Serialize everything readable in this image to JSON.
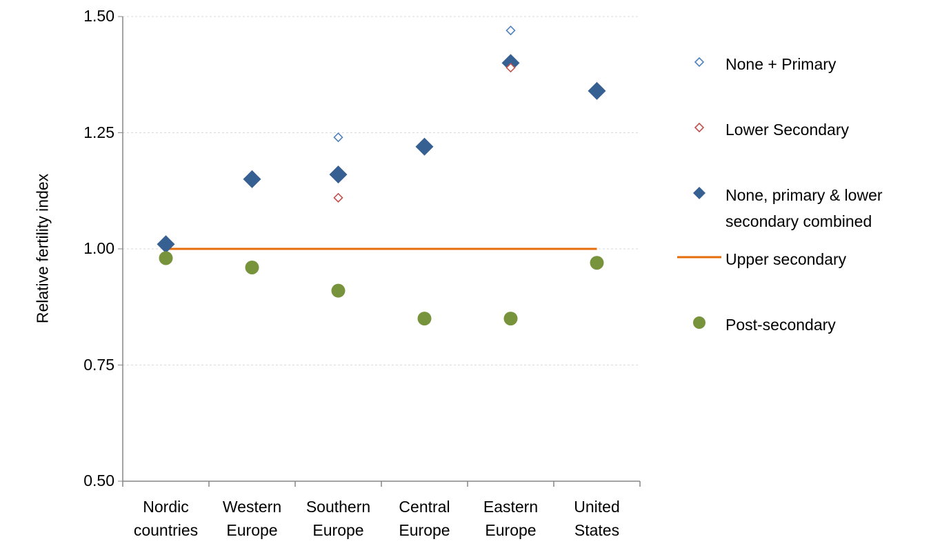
{
  "chart_data": {
    "type": "scatter",
    "y_label": "Relative fertility index",
    "categories": [
      "Nordic\ncountries",
      "Western\nEurope",
      "Southern\nEurope",
      "Central\nEurope",
      "Eastern\nEurope",
      "United\nStates"
    ],
    "series": [
      {
        "name": "None + Primary",
        "color": "#4f81bd",
        "marker": "open-diamond",
        "values": [
          null,
          null,
          1.24,
          null,
          1.47,
          null
        ]
      },
      {
        "name": "Lower Secondary",
        "color": "#c0504d",
        "marker": "open-diamond",
        "values": [
          null,
          null,
          1.11,
          null,
          1.39,
          null
        ]
      },
      {
        "name": "None, primary & lower secondary combined",
        "color": "#376092",
        "marker": "diamond",
        "values": [
          1.01,
          1.15,
          1.16,
          1.22,
          1.4,
          1.34
        ]
      },
      {
        "name": "Upper secondary",
        "color": "#e46c0a",
        "marker": "line",
        "values": [
          1.0,
          1.0,
          1.0,
          1.0,
          1.0,
          1.0
        ]
      },
      {
        "name": "Post-secondary",
        "color": "#77933c",
        "marker": "circle",
        "values": [
          0.98,
          0.96,
          0.91,
          0.85,
          0.85,
          0.97
        ]
      }
    ],
    "ylim": [
      0.5,
      1.5
    ],
    "yticks": [
      {
        "value": 0.5,
        "label": "0.50"
      },
      {
        "value": 0.75,
        "label": "0.75"
      },
      {
        "value": 1.0,
        "label": "1.00"
      },
      {
        "value": 1.25,
        "label": "1.25"
      },
      {
        "value": 1.5,
        "label": "1.50"
      }
    ],
    "grid": true,
    "legend": "right"
  }
}
